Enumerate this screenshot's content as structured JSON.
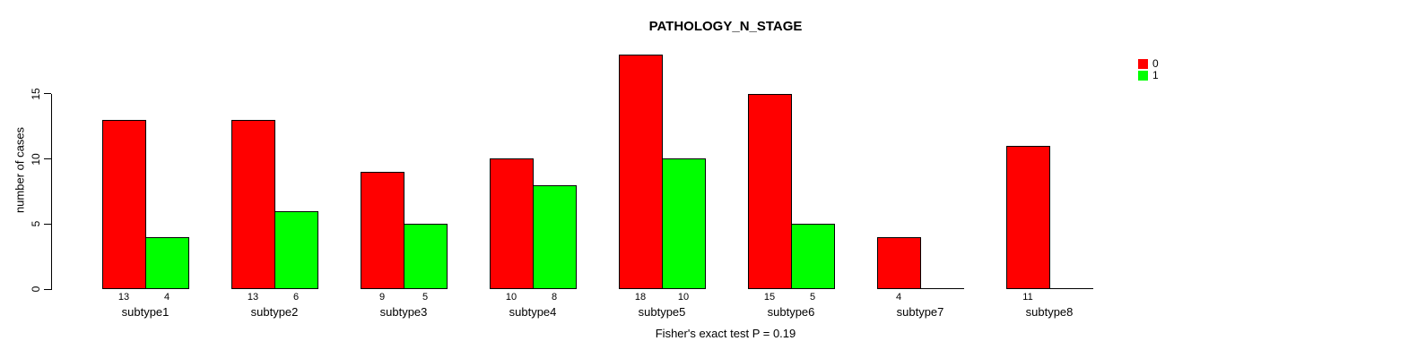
{
  "chart_data": {
    "type": "bar",
    "title": "PATHOLOGY_N_STAGE",
    "ylabel": "number of cases",
    "categories": [
      "subtype1",
      "subtype2",
      "subtype3",
      "subtype4",
      "subtype5",
      "subtype6",
      "subtype7",
      "subtype8"
    ],
    "series": [
      {
        "name": "0",
        "color": "#ff0000",
        "values": [
          13,
          13,
          9,
          10,
          18,
          15,
          4,
          11
        ]
      },
      {
        "name": "1",
        "color": "#00ff00",
        "values": [
          4,
          6,
          5,
          8,
          10,
          5,
          0,
          0
        ]
      }
    ],
    "yticks": [
      0,
      5,
      10,
      15
    ],
    "ylim": [
      0,
      18
    ],
    "grid": false,
    "legend_position": "top-right",
    "bar_value_labels": "shown below axis for each nonzero bar",
    "annotation": "Fisher's exact test P = 0.19"
  }
}
